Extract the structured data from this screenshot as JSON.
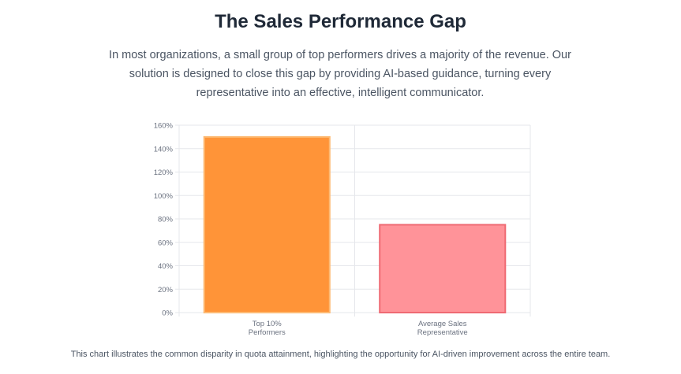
{
  "header": {
    "title": "The Sales Performance Gap",
    "intro": "In most organizations, a small group of top performers drives a majority of the revenue. Our solution is designed to close this gap by providing AI-based guidance, turning every representative into an effective, intelligent communicator."
  },
  "chart_data": {
    "type": "bar",
    "categories": [
      [
        "Top 10%",
        "Performers"
      ],
      [
        "Average Sales",
        "Representative"
      ]
    ],
    "values": [
      150,
      75
    ],
    "ylim": [
      0,
      160
    ],
    "yticks": [
      0,
      20,
      40,
      60,
      80,
      100,
      120,
      140,
      160
    ],
    "ytick_labels": [
      "0%",
      "20%",
      "40%",
      "60%",
      "80%",
      "100%",
      "120%",
      "140%",
      "160%"
    ],
    "grid": true,
    "legend": "none",
    "colors": [
      {
        "fill": "#ff9438",
        "stroke": "#fdba74"
      },
      {
        "fill": "#ff9399",
        "stroke": "#ef6a73"
      }
    ],
    "gridline_color": "#e5e7eb",
    "tick_label_color": "#6b7280"
  },
  "footer": {
    "note": "This chart illustrates the common disparity in quota attainment, highlighting the opportunity for AI-driven improvement across the entire team."
  }
}
